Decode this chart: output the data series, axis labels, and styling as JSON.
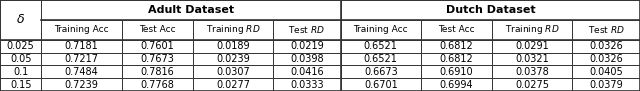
{
  "title_adult": "Adult Dataset",
  "title_dutch": "Dutch Dataset",
  "col_delta": "δ",
  "rows": [
    [
      "0.025",
      "0.7181",
      "0.7601",
      "0.0189",
      "0.0219",
      "0.6521",
      "0.6812",
      "0.0291",
      "0.0326"
    ],
    [
      "0.05",
      "0.7217",
      "0.7673",
      "0.0239",
      "0.0398",
      "0.6521",
      "0.6812",
      "0.0321",
      "0.0326"
    ],
    [
      "0.1",
      "0.7484",
      "0.7816",
      "0.0307",
      "0.0416",
      "0.6673",
      "0.6910",
      "0.0378",
      "0.0405"
    ],
    [
      "0.15",
      "0.7239",
      "0.7768",
      "0.0277",
      "0.0333",
      "0.6701",
      "0.6994",
      "0.0275",
      "0.0379"
    ]
  ],
  "line_color": "#333333",
  "figsize": [
    6.4,
    0.91
  ],
  "dpi": 100
}
